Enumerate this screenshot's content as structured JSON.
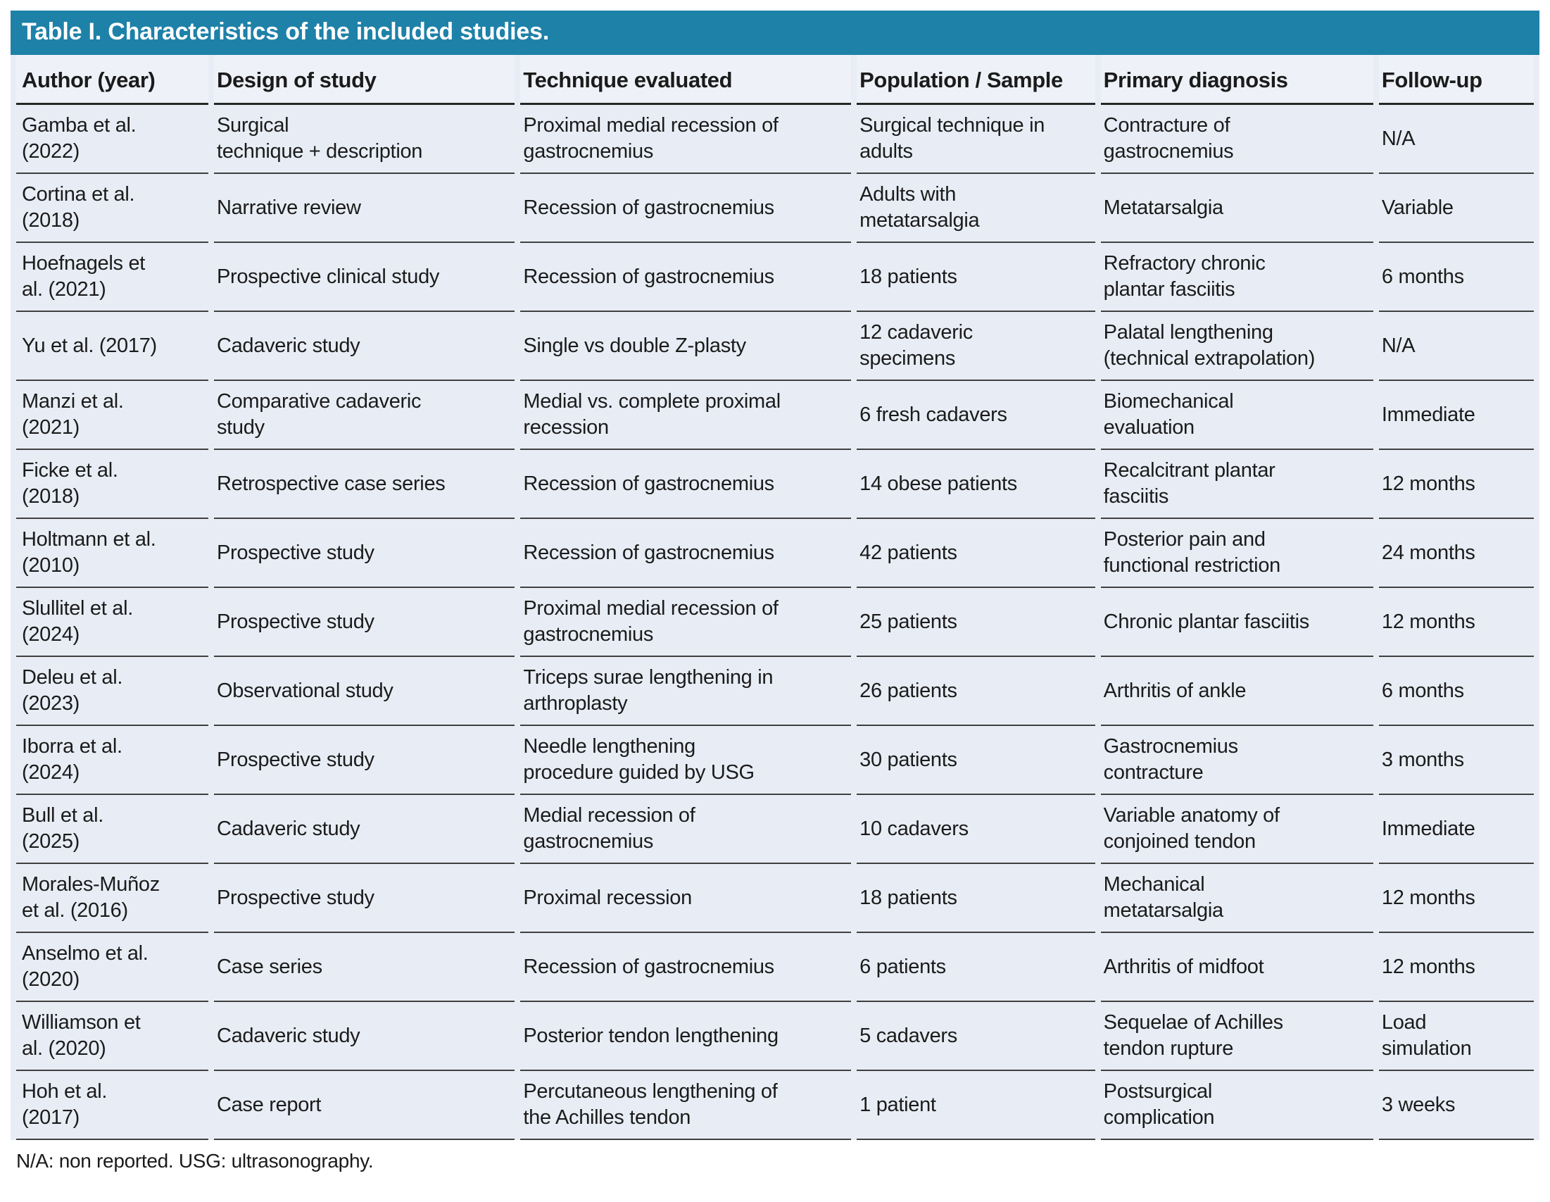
{
  "table": {
    "title": "Table I. Characteristics of the included studies.",
    "columns": [
      "Author (year)",
      "Design of study",
      "Technique evaluated",
      "Population / Sample",
      "Primary diagnosis",
      "Follow-up"
    ],
    "column_keys": [
      "author",
      "design",
      "technique",
      "population",
      "diagnosis",
      "followup"
    ],
    "rows": [
      {
        "author": "Gamba et al.\n(2022)",
        "design": "Surgical\ntechnique + description",
        "technique": "Proximal medial recession of\ngastrocnemius",
        "population": "Surgical technique in\nadults",
        "diagnosis": "Contracture of\ngastrocnemius",
        "followup": "N/A"
      },
      {
        "author": "Cortina et al.\n(2018)",
        "design": "Narrative review",
        "technique": "Recession of gastrocnemius",
        "population": "Adults with\nmetatarsalgia",
        "diagnosis": "Metatarsalgia",
        "followup": "Variable"
      },
      {
        "author": "Hoefnagels et\nal. (2021)",
        "design": "Prospective clinical study",
        "technique": "Recession of gastrocnemius",
        "population": "18 patients",
        "diagnosis": "Refractory chronic\nplantar fasciitis",
        "followup": "6 months"
      },
      {
        "author": "Yu et al. (2017)",
        "design": "Cadaveric study",
        "technique": "Single vs double Z-plasty",
        "population": "12 cadaveric\nspecimens",
        "diagnosis": "Palatal lengthening\n(technical extrapolation)",
        "followup": "N/A"
      },
      {
        "author": "Manzi et al.\n(2021)",
        "design": "Comparative cadaveric\nstudy",
        "technique": "Medial vs. complete proximal\nrecession",
        "population": "6 fresh cadavers",
        "diagnosis": "Biomechanical\nevaluation",
        "followup": "Immediate"
      },
      {
        "author": "Ficke et al.\n(2018)",
        "design": "Retrospective case series",
        "technique": "Recession of gastrocnemius",
        "population": "14 obese patients",
        "diagnosis": "Recalcitrant plantar\nfasciitis",
        "followup": "12 months"
      },
      {
        "author": "Holtmann et al.\n(2010)",
        "design": "Prospective study",
        "technique": "Recession of gastrocnemius",
        "population": "42 patients",
        "diagnosis": "Posterior pain and\nfunctional restriction",
        "followup": "24 months"
      },
      {
        "author": "Slullitel et al.\n(2024)",
        "design": "Prospective study",
        "technique": "Proximal medial recession of\ngastrocnemius",
        "population": "25 patients",
        "diagnosis": "Chronic plantar fasciitis",
        "followup": "12 months"
      },
      {
        "author": "Deleu et al.\n(2023)",
        "design": "Observational study",
        "technique": "Triceps surae lengthening in\narthroplasty",
        "population": "26 patients",
        "diagnosis": "Arthritis of ankle",
        "followup": "6 months"
      },
      {
        "author": "Iborra et al.\n(2024)",
        "design": "Prospective study",
        "technique": "Needle lengthening\nprocedure guided by USG",
        "population": "30 patients",
        "diagnosis": "Gastrocnemius\ncontracture",
        "followup": "3 months"
      },
      {
        "author": "Bull et al.\n(2025)",
        "design": "Cadaveric study",
        "technique": "Medial recession of\ngastrocnemius",
        "population": "10 cadavers",
        "diagnosis": "Variable anatomy of\nconjoined tendon",
        "followup": "Immediate"
      },
      {
        "author": "Morales-Muñoz\net al. (2016)",
        "design": "Prospective study",
        "technique": "Proximal recession",
        "population": "18 patients",
        "diagnosis": "Mechanical\nmetatarsalgia",
        "followup": "12 months"
      },
      {
        "author": "Anselmo et al.\n(2020)",
        "design": "Case series",
        "technique": "Recession of gastrocnemius",
        "population": "6 patients",
        "diagnosis": "Arthritis of midfoot",
        "followup": "12 months"
      },
      {
        "author": "Williamson et\nal. (2020)",
        "design": "Cadaveric study",
        "technique": "Posterior tendon lengthening",
        "population": "5 cadavers",
        "diagnosis": "Sequelae of Achilles\ntendon rupture",
        "followup": "Load\nsimulation"
      },
      {
        "author": "Hoh et al.\n(2017)",
        "design": "Case report",
        "technique": "Percutaneous lengthening of\nthe Achilles tendon",
        "population": "1 patient",
        "diagnosis": "Postsurgical\ncomplication",
        "followup": "3 weeks"
      }
    ],
    "footnote": "N/A: non reported. USG: ultrasonography."
  },
  "colors": {
    "accent_teal": "#1E81A8",
    "table_background": "#E8EDF5",
    "header_row_background": "#EEF1F8",
    "separator_line": "#3F3F3F",
    "text": "#1B1B1B",
    "title_text": "#FFFFFF"
  }
}
